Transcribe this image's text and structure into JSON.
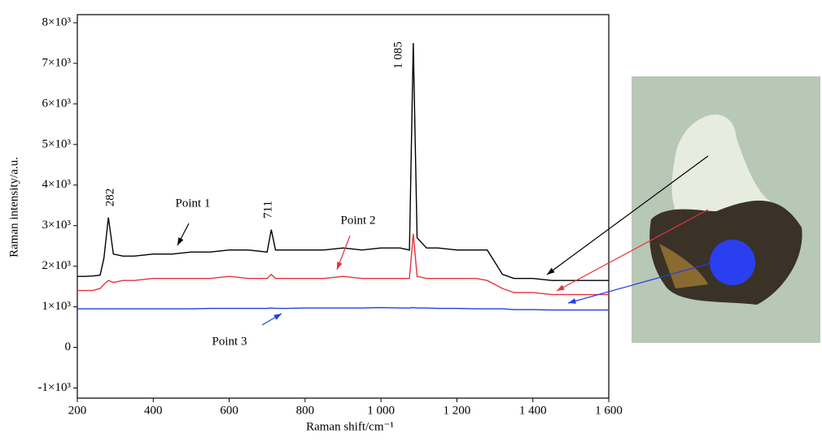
{
  "chart_data": {
    "type": "line",
    "xlabel": "Raman shift/cm⁻¹",
    "ylabel": "Raman intensity/a.u.",
    "annotations": [
      "282",
      "711",
      "1 085",
      "Point 1",
      "Point 2",
      "Point 3"
    ],
    "xlim": [
      200,
      1600
    ],
    "ylim": [
      -1250,
      8200
    ],
    "xticks": [
      200,
      400,
      600,
      800,
      {
        "value": 1000,
        "label": "1 000"
      },
      {
        "value": 1200,
        "label": "1 200"
      },
      {
        "value": 1400,
        "label": "1 400"
      },
      {
        "value": 1600,
        "label": "1 600"
      }
    ],
    "yticks": [
      {
        "value": -1000,
        "label": "-1×10³"
      },
      0,
      {
        "value": 1000,
        "label": "1×10³"
      },
      {
        "value": 2000,
        "label": "2×10³"
      },
      {
        "value": 3000,
        "label": "3×10³"
      },
      {
        "value": 4000,
        "label": "4×10³"
      },
      {
        "value": 5000,
        "label": "5×10³"
      },
      {
        "value": 6000,
        "label": "6×10³"
      },
      {
        "value": 7000,
        "label": "7×10³"
      },
      {
        "value": 8000,
        "label": "8×10³"
      }
    ],
    "x": [
      200,
      220,
      240,
      260,
      270,
      282,
      295,
      320,
      350,
      400,
      450,
      500,
      550,
      600,
      650,
      700,
      711,
      722,
      750,
      800,
      850,
      900,
      950,
      1000,
      1050,
      1075,
      1085,
      1095,
      1120,
      1150,
      1200,
      1250,
      1280,
      1300,
      1320,
      1350,
      1400,
      1450,
      1500,
      1550,
      1600
    ],
    "series": [
      {
        "color": "#000000",
        "values": [
          1750,
          1750,
          1760,
          1780,
          2200,
          3200,
          2300,
          2250,
          2250,
          2300,
          2300,
          2350,
          2350,
          2400,
          2400,
          2350,
          2900,
          2400,
          2400,
          2400,
          2400,
          2450,
          2400,
          2450,
          2450,
          2400,
          7500,
          2700,
          2450,
          2450,
          2400,
          2400,
          2400,
          2100,
          1800,
          1700,
          1700,
          1650,
          1650,
          1650,
          1650
        ]
      },
      {
        "color": "#e8323c",
        "values": [
          1400,
          1400,
          1400,
          1450,
          1550,
          1650,
          1600,
          1650,
          1650,
          1700,
          1700,
          1700,
          1700,
          1750,
          1700,
          1700,
          1800,
          1700,
          1700,
          1700,
          1700,
          1750,
          1700,
          1700,
          1700,
          1700,
          2800,
          1750,
          1700,
          1700,
          1700,
          1700,
          1650,
          1550,
          1450,
          1350,
          1350,
          1300,
          1300,
          1300,
          1300
        ]
      },
      {
        "color": "#2040e0",
        "values": [
          950,
          950,
          950,
          950,
          950,
          950,
          950,
          950,
          950,
          950,
          950,
          950,
          960,
          960,
          960,
          960,
          970,
          960,
          960,
          970,
          970,
          970,
          970,
          980,
          970,
          970,
          980,
          970,
          970,
          960,
          960,
          950,
          950,
          950,
          950,
          930,
          930,
          920,
          920,
          920,
          920
        ]
      }
    ]
  }
}
